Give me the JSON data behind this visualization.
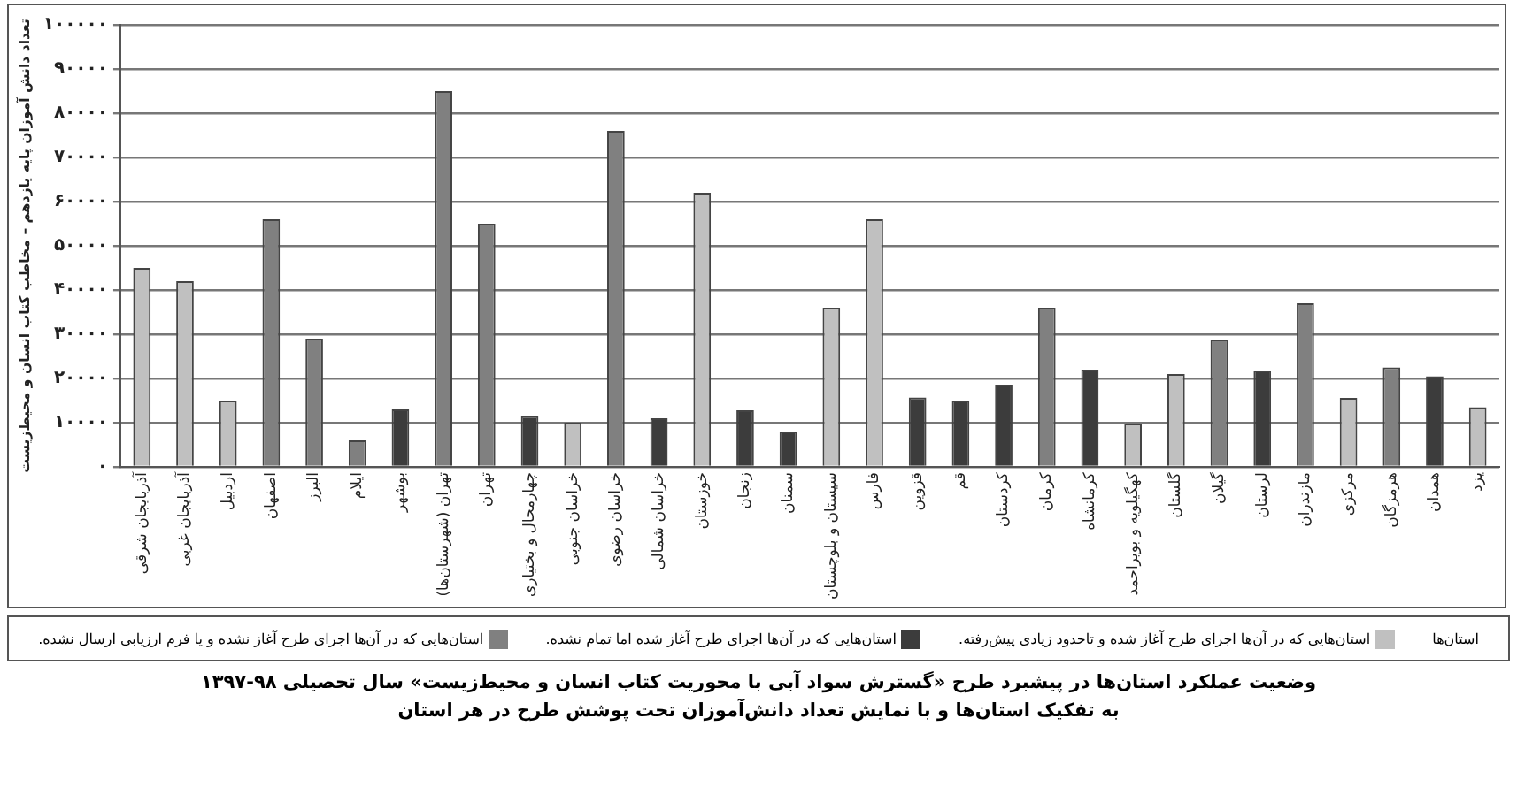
{
  "chart_data": {
    "type": "bar",
    "title": "وضعیت عملکرد استان‌ها در پیشبرد طرح «گسترش سواد آبی با محوریت کتاب انسان و محیط‌زیست» سال تحصیلی ۹۸-۱۳۹۷",
    "subtitle": "به تفکیک استان‌ها و با نمایش تعداد دانش‌آموزان تحت پوشش طرح در هر استان",
    "ylabel": "تعداد دانش آموزان پایه یازدهم – مخاطب کتاب انسان و محیط‌زیست",
    "legend_title": "استان‌ها",
    "categories": [
      "آذربایجان شرقی",
      "آذربایجان غربی",
      "اردبیل",
      "اصفهان",
      "البرز",
      "ایلام",
      "بوشهر",
      "تهران (شهرستان‌ها)",
      "تهران",
      "چهارمحال و بختیاری",
      "خراسان جنوبی",
      "خراسان رضوی",
      "خراسان شمالی",
      "خوزستان",
      "زنجان",
      "سمنان",
      "سیستان و بلوچستان",
      "فارس",
      "قزوین",
      "قم",
      "کردستان",
      "کرمان",
      "کرمانشاه",
      "کهگیلویه و بویراحمد",
      "گلستان",
      "گیلان",
      "لرستان",
      "مازندران",
      "مرکزی",
      "هرمزگان",
      "همدان",
      "یزد"
    ],
    "series": [
      {
        "name": "استان‌هایی که در آن‌ها اجرای طرح آغاز شده و تاحدود زیادی پیش‌رفته.",
        "color": "#c0c0c0",
        "values": [
          45000,
          42000,
          15000,
          null,
          null,
          null,
          null,
          null,
          null,
          null,
          10000,
          null,
          null,
          62000,
          null,
          null,
          36000,
          56000,
          null,
          null,
          null,
          null,
          null,
          9800,
          21000,
          null,
          null,
          null,
          15600,
          null,
          null,
          13500
        ]
      },
      {
        "name": "استان‌هایی که در آن‌ها اجرای طرح آغاز شده اما تمام نشده.",
        "color": "#3c3c3c",
        "values": [
          null,
          null,
          null,
          null,
          null,
          null,
          13000,
          null,
          null,
          11500,
          null,
          null,
          11000,
          null,
          12800,
          8000,
          null,
          null,
          15700,
          15000,
          18600,
          null,
          22000,
          null,
          null,
          null,
          21800,
          null,
          null,
          null,
          20500,
          null
        ]
      },
      {
        "name": "استان‌هایی که در آن‌ها اجرای طرح آغاز نشده و یا فرم ارزیابی ارسال نشده.",
        "color": "#808080",
        "values": [
          null,
          null,
          null,
          56000,
          29000,
          6000,
          null,
          85000,
          55000,
          null,
          null,
          76000,
          null,
          null,
          null,
          null,
          null,
          null,
          null,
          null,
          null,
          36000,
          null,
          null,
          null,
          28800,
          null,
          37000,
          null,
          22500,
          null,
          null
        ]
      }
    ],
    "ylim": [
      0,
      100000
    ],
    "yticks": [
      {
        "value": 0,
        "label": "۰"
      },
      {
        "value": 10000,
        "label": "۱۰۰۰۰"
      },
      {
        "value": 20000,
        "label": "۲۰۰۰۰"
      },
      {
        "value": 30000,
        "label": "۳۰۰۰۰"
      },
      {
        "value": 40000,
        "label": "۴۰۰۰۰"
      },
      {
        "value": 50000,
        "label": "۵۰۰۰۰"
      },
      {
        "value": 60000,
        "label": "۶۰۰۰۰"
      },
      {
        "value": 70000,
        "label": "۷۰۰۰۰"
      },
      {
        "value": 80000,
        "label": "۸۰۰۰۰"
      },
      {
        "value": 90000,
        "label": "۹۰۰۰۰"
      },
      {
        "value": 100000,
        "label": "۱۰۰۰۰۰"
      }
    ],
    "grid": "y",
    "legend": "bottom"
  }
}
